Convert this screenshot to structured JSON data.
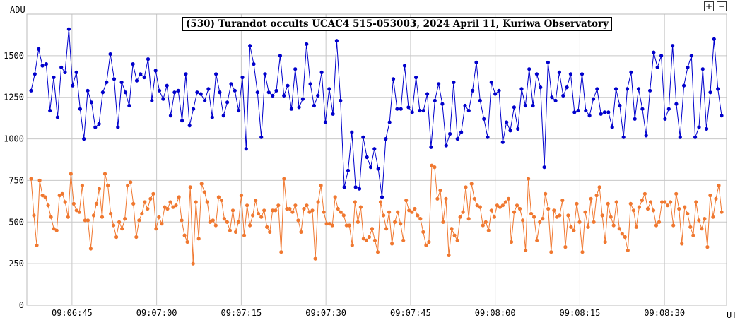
{
  "toolbar": {
    "zoom_in_label": "+",
    "zoom_out_label": "−"
  },
  "chart_data": {
    "type": "line",
    "title": "(530) Turandot occults UCAC4 515-053003, 2024 April 11, Kuriwa Observatory",
    "ylabel": "ADU",
    "xlabel": "UT",
    "ylim": [
      0,
      1750
    ],
    "yticks": [
      0,
      250,
      500,
      750,
      1000,
      1250,
      1500
    ],
    "xlim": [
      "09:06:37",
      "09:08:41"
    ],
    "xticks": [
      "09:06:45",
      "09:07:00",
      "09:07:15",
      "09:07:30",
      "09:07:45",
      "09:08:00",
      "09:08:15",
      "09:08:30"
    ],
    "grid": true,
    "series": [
      {
        "color": "#0000cc",
        "values": [
          1290,
          1390,
          1540,
          1440,
          1450,
          1170,
          1370,
          1130,
          1430,
          1400,
          1660,
          1320,
          1400,
          1180,
          1000,
          1290,
          1220,
          1070,
          1090,
          1280,
          1340,
          1510,
          1360,
          1070,
          1340,
          1280,
          1200,
          1450,
          1350,
          1390,
          1370,
          1480,
          1230,
          1410,
          1290,
          1240,
          1320,
          1140,
          1280,
          1290,
          1110,
          1390,
          1080,
          1180,
          1280,
          1270,
          1230,
          1300,
          1130,
          1390,
          1280,
          1140,
          1220,
          1330,
          1290,
          1170,
          1370,
          940,
          1560,
          1450,
          1280,
          1010,
          1390,
          1280,
          1260,
          1290,
          1500,
          1260,
          1320,
          1180,
          1420,
          1190,
          1240,
          1570,
          1330,
          1200,
          1260,
          1400,
          1100,
          1300,
          1150,
          1590,
          1230,
          710,
          810,
          1040,
          710,
          700,
          1010,
          890,
          830,
          940,
          820,
          650,
          1000,
          1100,
          1360,
          1180,
          1180,
          1440,
          1190,
          1160,
          1370,
          1170,
          1170,
          1270,
          950,
          1230,
          1330,
          1210,
          960,
          1030,
          1340,
          1000,
          1040,
          1200,
          1170,
          1290,
          1460,
          1230,
          1120,
          1010,
          1340,
          1270,
          1290,
          980,
          1100,
          1050,
          1190,
          1060,
          1300,
          1200,
          1420,
          1200,
          1390,
          1310,
          830,
          1460,
          1250,
          1230,
          1400,
          1260,
          1310,
          1390,
          1160,
          1170,
          1390,
          1170,
          1140,
          1240,
          1300,
          1150,
          1160,
          1160,
          1070,
          1300,
          1200,
          1010,
          1300,
          1400,
          1120,
          1300,
          1180,
          1020,
          1290,
          1520,
          1430,
          1500,
          1120,
          1180,
          1560,
          1210,
          1010,
          1320,
          1430,
          1500,
          1010,
          1070,
          1420,
          1060,
          1280,
          1600,
          1300,
          1140
        ]
      },
      {
        "color": "#f07830",
        "values": [
          760,
          540,
          360,
          750,
          660,
          650,
          600,
          530,
          460,
          450,
          660,
          670,
          620,
          530,
          790,
          610,
          570,
          560,
          720,
          510,
          510,
          340,
          540,
          610,
          700,
          530,
          790,
          720,
          550,
          480,
          410,
          500,
          460,
          520,
          720,
          740,
          610,
          410,
          510,
          550,
          620,
          580,
          640,
          670,
          460,
          530,
          490,
          590,
          580,
          620,
          590,
          600,
          650,
          510,
          420,
          380,
          710,
          250,
          620,
          400,
          730,
          680,
          620,
          500,
          510,
          480,
          650,
          630,
          520,
          500,
          450,
          570,
          440,
          500,
          660,
          420,
          600,
          480,
          540,
          630,
          550,
          530,
          570,
          470,
          440,
          570,
          570,
          600,
          320,
          760,
          580,
          580,
          560,
          600,
          510,
          440,
          580,
          600,
          560,
          570,
          280,
          620,
          720,
          560,
          490,
          490,
          480,
          650,
          580,
          560,
          540,
          480,
          480,
          360,
          620,
          500,
          590,
          400,
          390,
          410,
          460,
          390,
          320,
          620,
          540,
          460,
          560,
          370,
          500,
          560,
          490,
          390,
          630,
          570,
          560,
          580,
          540,
          520,
          440,
          360,
          380,
          840,
          830,
          640,
          690,
          500,
          640,
          300,
          460,
          420,
          390,
          530,
          560,
          710,
          520,
          730,
          640,
          600,
          590,
          480,
          500,
          450,
          570,
          530,
          600,
          590,
          600,
          620,
          640,
          380,
          560,
          600,
          580,
          510,
          330,
          760,
          550,
          530,
          390,
          500,
          520,
          670,
          580,
          320,
          570,
          530,
          540,
          630,
          350,
          540,
          470,
          450,
          610,
          500,
          320,
          560,
          470,
          640,
          500,
          660,
          710,
          540,
          380,
          610,
          530,
          480,
          620,
          460,
          430,
          410,
          330,
          610,
          570,
          470,
          590,
          630,
          670,
          580,
          620,
          570,
          480,
          500,
          620,
          620,
          600,
          620,
          480,
          670,
          580,
          370,
          590,
          550,
          470,
          420,
          620,
          510,
          460,
          520,
          350,
          660,
          530,
          640,
          720,
          560
        ]
      }
    ]
  }
}
